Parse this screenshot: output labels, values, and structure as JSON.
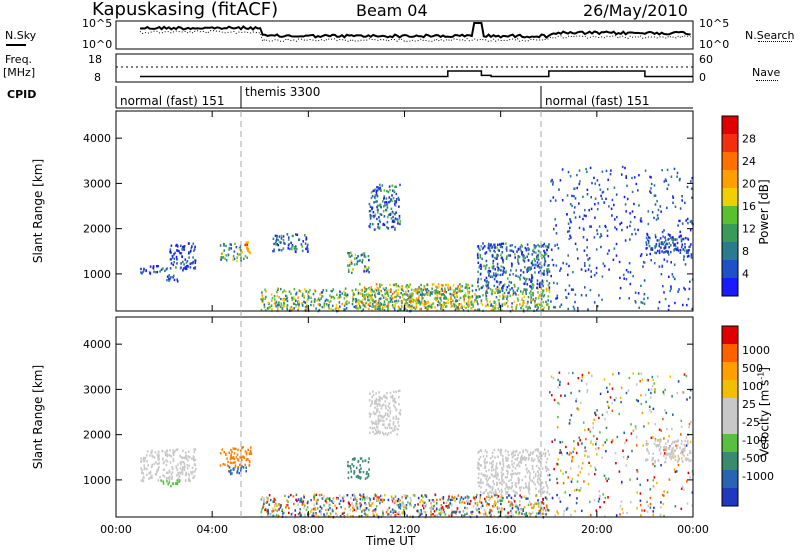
{
  "header": {
    "station": "Kapuskasing (fitACF)",
    "beam": "Beam 04",
    "date": "26/May/2010"
  },
  "top_panels": {
    "nsky_label": "N.Sky",
    "nsearch_label": "N.Search",
    "noise_ticks": [
      "10^5",
      "10^0"
    ],
    "freq_label_1": "Freq.",
    "freq_label_2": "[MHz]",
    "freq_ticks": [
      "18",
      "8"
    ],
    "nave_label": "Nave",
    "nave_ticks": [
      "60",
      "0"
    ],
    "cpid_label": "CPID",
    "cpid_segments": [
      {
        "name": "normal (fast) 151",
        "start_h": 1.0,
        "end_h": 6.0
      },
      {
        "name": "themis 3300",
        "start_h": 6.0,
        "end_h": 18.0
      },
      {
        "name": "normal (fast) 151",
        "start_h": 18.0,
        "end_h": 24.0
      }
    ],
    "freq_steps": [
      {
        "start_h": 1.0,
        "end_h": 13.8,
        "mhz": 10.5
      },
      {
        "start_h": 13.8,
        "end_h": 15.2,
        "mhz": 13.0
      },
      {
        "start_h": 15.2,
        "end_h": 15.6,
        "mhz": 11.0
      },
      {
        "start_h": 15.6,
        "end_h": 18.0,
        "mhz": 10.5
      },
      {
        "start_h": 18.0,
        "end_h": 22.0,
        "mhz": 13.0
      },
      {
        "start_h": 22.0,
        "end_h": 24.0,
        "mhz": 10.5
      }
    ]
  },
  "chart_data": [
    {
      "type": "heatmap",
      "panel": "power",
      "ylabel": "Slant Range [km]",
      "ylim": [
        180,
        4600
      ],
      "yticks": [
        1000,
        2000,
        3000,
        4000
      ],
      "colorbar_label": "Power [dB]",
      "colorbar_ticks": [
        "4",
        "8",
        "12",
        "16",
        "20",
        "24",
        "28"
      ],
      "colorbar_colors": [
        "#1a1aff",
        "#2050c8",
        "#2a7a90",
        "#3a9a5a",
        "#5ac030",
        "#f0d000",
        "#ffa000",
        "#ff7000",
        "#f03010",
        "#e00000"
      ],
      "regions": [
        {
          "x": [
            1.0,
            2.2
          ],
          "r": [
            1030,
            1200
          ],
          "level": 1
        },
        {
          "x": [
            2.0,
            2.6
          ],
          "r": [
            860,
            1020
          ],
          "level": 1
        },
        {
          "x": [
            2.2,
            3.3
          ],
          "r": [
            1100,
            1700
          ],
          "level": 1
        },
        {
          "x": [
            4.3,
            5.2
          ],
          "r": [
            1300,
            1700
          ],
          "level": 3
        },
        {
          "x": [
            5.2,
            5.6
          ],
          "r": [
            1350,
            1750
          ],
          "level": 6
        },
        {
          "x": [
            6.5,
            8.0
          ],
          "r": [
            1500,
            1900
          ],
          "level": 2
        },
        {
          "x": [
            9.6,
            10.5
          ],
          "r": [
            1050,
            1500
          ],
          "level": 3
        },
        {
          "x": [
            10.5,
            11.8
          ],
          "r": [
            2000,
            3000
          ],
          "level": 2
        },
        {
          "x": [
            6.0,
            18.0
          ],
          "r": [
            200,
            700
          ],
          "level": 4
        },
        {
          "x": [
            10.0,
            14.8
          ],
          "r": [
            250,
            800
          ],
          "level": 5
        },
        {
          "x": [
            15.0,
            18.0
          ],
          "r": [
            700,
            1700
          ],
          "level": 2
        },
        {
          "x": [
            18.0,
            24.0
          ],
          "r": [
            200,
            3400
          ],
          "level": 0
        },
        {
          "x": [
            22.0,
            23.9
          ],
          "r": [
            1400,
            1900
          ],
          "level": 1
        }
      ]
    },
    {
      "type": "heatmap",
      "panel": "velocity",
      "ylabel": "Slant Range [km]",
      "xlabel": "Time UT",
      "ylim": [
        180,
        4600
      ],
      "yticks": [
        1000,
        2000,
        3000,
        4000
      ],
      "xticks": [
        "00:00",
        "04:00",
        "08:00",
        "12:00",
        "16:00",
        "20:00",
        "00:00"
      ],
      "colorbar_label": "Velocity [m s^-1]",
      "colorbar_ticks": [
        "1000",
        "500",
        "100",
        "25",
        "-25",
        "-100",
        "-500",
        "-1000"
      ],
      "colorbar_colors": [
        "#2038c0",
        "#2a64b0",
        "#3a8a70",
        "#58c040",
        "#c8c8c8",
        "#c8c8c8",
        "#f0c000",
        "#ffa000",
        "#ff6000",
        "#e00000"
      ],
      "regions": [
        {
          "x": [
            1.0,
            3.3
          ],
          "r": [
            1000,
            1700
          ],
          "color": "#c8c8c8"
        },
        {
          "x": [
            1.8,
            2.6
          ],
          "r": [
            850,
            1020
          ],
          "color": "#58c040"
        },
        {
          "x": [
            4.3,
            5.6
          ],
          "r": [
            1300,
            1750
          ],
          "color": "#ff8000"
        },
        {
          "x": [
            4.6,
            5.4
          ],
          "r": [
            1150,
            1350
          ],
          "color": "#2a64b0"
        },
        {
          "x": [
            6.0,
            18.0
          ],
          "r": [
            200,
            700
          ],
          "color": "mixed"
        },
        {
          "x": [
            9.6,
            10.5
          ],
          "r": [
            1050,
            1500
          ],
          "color": "#3a8a70"
        },
        {
          "x": [
            10.5,
            11.8
          ],
          "r": [
            2000,
            3000
          ],
          "color": "#c8c8c8"
        },
        {
          "x": [
            15.0,
            18.0
          ],
          "r": [
            700,
            1700
          ],
          "color": "#c8c8c8"
        },
        {
          "x": [
            18.0,
            24.0
          ],
          "r": [
            200,
            3400
          ],
          "color": "mixed-sparse"
        },
        {
          "x": [
            22.0,
            23.9
          ],
          "r": [
            1400,
            1900
          ],
          "color": "#c8c8c8"
        }
      ]
    }
  ]
}
